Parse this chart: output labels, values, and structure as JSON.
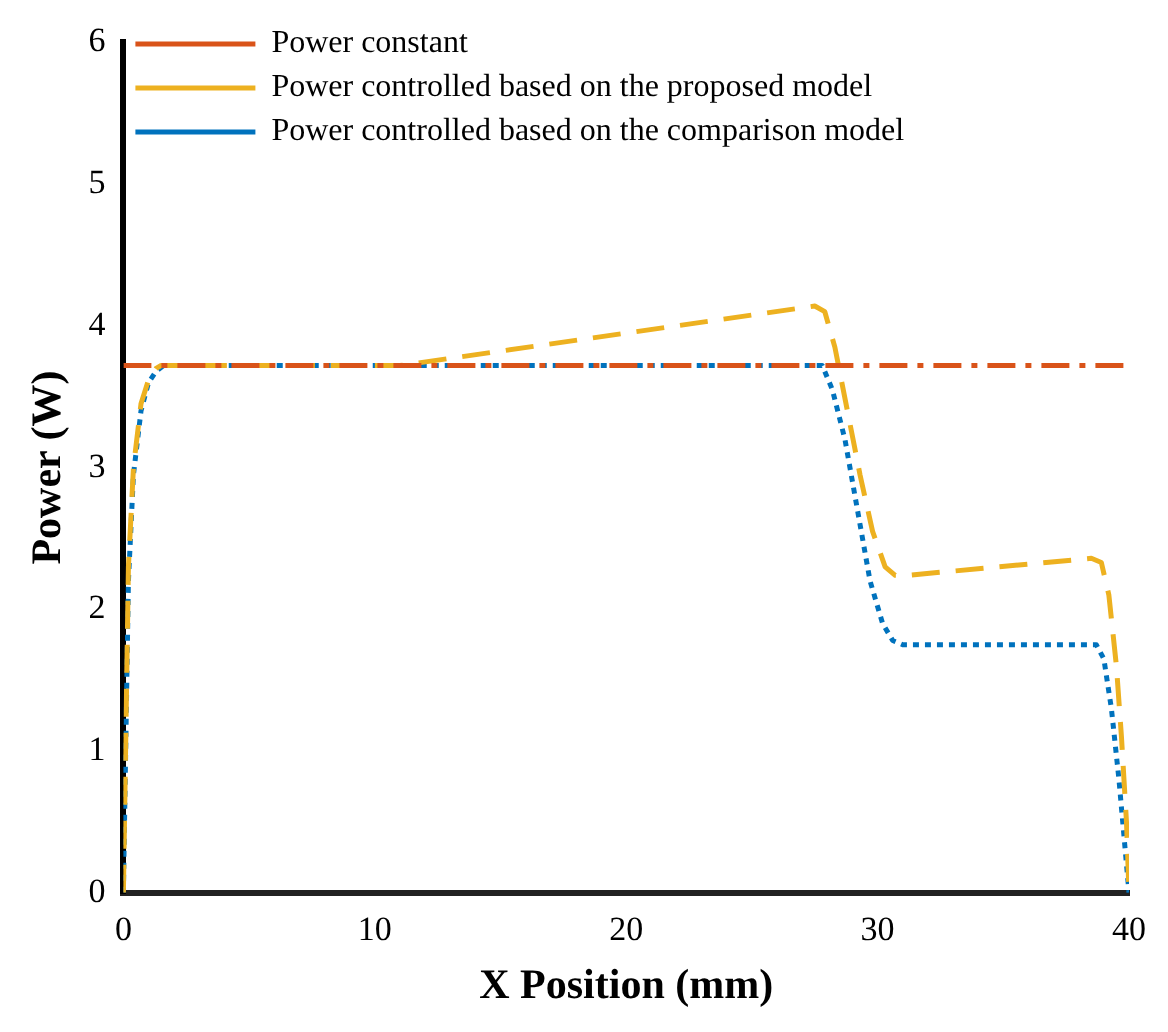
{
  "chart_data": {
    "type": "line",
    "xlabel": "X Position (mm)",
    "ylabel": "Power (W)",
    "xlim": [
      0,
      40
    ],
    "xticks": [
      0,
      10,
      20,
      30,
      40
    ],
    "ylim": [
      0,
      6
    ],
    "yticks": [
      0,
      1,
      2,
      3,
      4,
      5,
      6
    ],
    "grid": false,
    "legend": "top left",
    "marker": "none",
    "series": [
      {
        "name": "Power constant",
        "color": "#d95319",
        "line_style": "dashdot",
        "x": [
          0,
          40
        ],
        "values": [
          3.72,
          3.72
        ]
      },
      {
        "name": "Power controlled based on the proposed model",
        "color": "#edb120",
        "line_style": "dashed",
        "x": [
          0,
          0.2,
          0.4,
          0.7,
          1.0,
          1.3,
          1.5,
          11,
          27.5,
          27.9,
          28.3,
          28.8,
          29.3,
          29.8,
          30.3,
          30.7,
          31.2,
          38.5,
          38.9,
          39.2,
          39.5,
          39.7,
          39.9,
          40
        ],
        "values": [
          0,
          2.3,
          3.0,
          3.45,
          3.62,
          3.7,
          3.72,
          3.72,
          4.14,
          4.1,
          3.85,
          3.4,
          2.95,
          2.55,
          2.3,
          2.24,
          2.24,
          2.36,
          2.33,
          2.1,
          1.6,
          1.1,
          0.5,
          0
        ]
      },
      {
        "name": "Power controlled based on the comparison model",
        "color": "#0072bd",
        "line_style": "dotted",
        "x": [
          0,
          0.2,
          0.4,
          0.7,
          1.0,
          1.3,
          1.6,
          27.8,
          28.2,
          28.7,
          29.2,
          29.7,
          30.2,
          30.6,
          31.0,
          38.7,
          39.0,
          39.3,
          39.6,
          39.8,
          39.95,
          40
        ],
        "values": [
          0,
          2.2,
          2.95,
          3.4,
          3.6,
          3.68,
          3.72,
          3.72,
          3.55,
          3.2,
          2.7,
          2.2,
          1.9,
          1.78,
          1.75,
          1.75,
          1.65,
          1.3,
          0.8,
          0.4,
          0.1,
          0
        ]
      }
    ]
  }
}
